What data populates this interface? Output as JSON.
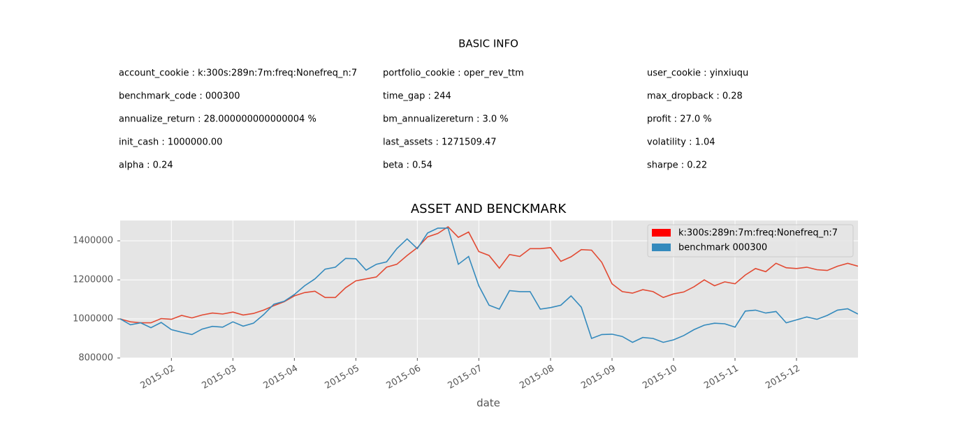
{
  "info": {
    "title": "BASIC INFO",
    "rows": [
      [
        "account_cookie : k:300s:289n:7m:freq:Nonefreq_n:7",
        "portfolio_cookie : oper_rev_ttm",
        "user_cookie : yinxiuqu"
      ],
      [
        "benchmark_code : 000300",
        "time_gap : 244",
        "max_dropback : 0.28"
      ],
      [
        "annualize_return : 28.000000000000004 %",
        "bm_annualizereturn : 3.0 %",
        "profit : 27.0 %"
      ],
      [
        "init_cash : 1000000.00",
        "last_assets : 1271509.47",
        "volatility : 1.04"
      ],
      [
        "alpha : 0.24",
        "beta : 0.54",
        "sharpe : 0.22"
      ]
    ]
  },
  "chart_data": {
    "type": "line",
    "title": "ASSET AND BENCKMARK",
    "x_label": "date",
    "categories": [
      null,
      null,
      null,
      null,
      null,
      "2015-02",
      null,
      null,
      null,
      null,
      null,
      "2015-03",
      null,
      null,
      null,
      null,
      null,
      "2015-04",
      null,
      null,
      null,
      null,
      null,
      "2015-05",
      null,
      null,
      null,
      null,
      null,
      "2015-06",
      null,
      null,
      null,
      null,
      null,
      "2015-07",
      null,
      null,
      null,
      null,
      null,
      null,
      "2015-08",
      null,
      null,
      null,
      null,
      null,
      "2015-09",
      null,
      null,
      null,
      null,
      null,
      "2015-10",
      null,
      null,
      null,
      null,
      null,
      "2015-11",
      null,
      null,
      null,
      null,
      null,
      "2015-12",
      null,
      null,
      null,
      null,
      null,
      null
    ],
    "series": [
      {
        "name": "k:300s:289n:7m:freq:Nonefreq_n:7",
        "color": "#e24a33",
        "legend_color": "#ff0000",
        "values": [
          1000000,
          985000,
          980000,
          980000,
          1002000,
          998000,
          1018000,
          1005000,
          1020000,
          1030000,
          1025000,
          1035000,
          1020000,
          1028000,
          1045000,
          1068000,
          1088000,
          1118000,
          1135000,
          1142000,
          1110000,
          1110000,
          1160000,
          1195000,
          1205000,
          1215000,
          1265000,
          1280000,
          1325000,
          1365000,
          1420000,
          1438000,
          1472000,
          1418000,
          1445000,
          1345000,
          1325000,
          1260000,
          1330000,
          1320000,
          1360000,
          1360000,
          1365000,
          1295000,
          1318000,
          1355000,
          1352000,
          1290000,
          1180000,
          1140000,
          1132000,
          1150000,
          1140000,
          1110000,
          1128000,
          1138000,
          1165000,
          1200000,
          1170000,
          1190000,
          1180000,
          1225000,
          1258000,
          1242000,
          1285000,
          1262000,
          1258000,
          1265000,
          1252000,
          1248000,
          1270000,
          1285000,
          1270000
        ]
      },
      {
        "name": "benchmark 000300",
        "color": "#348abd",
        "legend_color": "#348abd",
        "values": [
          1000000,
          970000,
          980000,
          955000,
          982000,
          945000,
          932000,
          920000,
          948000,
          962000,
          958000,
          985000,
          963000,
          978000,
          1022000,
          1075000,
          1090000,
          1125000,
          1170000,
          1205000,
          1255000,
          1265000,
          1310000,
          1308000,
          1250000,
          1280000,
          1292000,
          1360000,
          1410000,
          1360000,
          1440000,
          1465000,
          1465000,
          1280000,
          1320000,
          1170000,
          1070000,
          1050000,
          1145000,
          1140000,
          1140000,
          1050000,
          1058000,
          1070000,
          1118000,
          1060000,
          900000,
          920000,
          922000,
          910000,
          880000,
          905000,
          900000,
          880000,
          893000,
          915000,
          945000,
          968000,
          978000,
          975000,
          958000,
          1040000,
          1045000,
          1030000,
          1038000,
          980000,
          995000,
          1010000,
          998000,
          1018000,
          1045000,
          1052000,
          1025000
        ]
      }
    ],
    "ylim": [
      800000,
      1504000
    ],
    "yticks": [
      800000,
      1000000,
      1200000,
      1400000
    ],
    "grid": true,
    "legend": "upper right"
  }
}
